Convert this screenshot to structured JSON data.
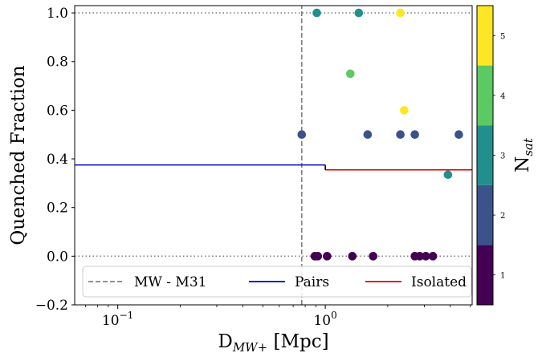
{
  "chart_data": {
    "type": "scatter",
    "xlabel": "D",
    "xlabel_sub": "MW+",
    "xlabel_unit": "[Mpc]",
    "ylabel": "Quenched Fraction",
    "xscale": "log",
    "xlim": [
      0.062,
      5.1
    ],
    "ylim": [
      -0.2,
      1.03
    ],
    "x_ticks": [
      {
        "value": 0.1,
        "base": "10",
        "exp": "−1"
      },
      {
        "value": 1.0,
        "base": "10",
        "exp": "0"
      }
    ],
    "y_ticks": [
      {
        "value": -0.2,
        "label": "−0.2"
      },
      {
        "value": 0.0,
        "label": "0.0"
      },
      {
        "value": 0.2,
        "label": "0.2"
      },
      {
        "value": 0.4,
        "label": "0.4"
      },
      {
        "value": 0.6,
        "label": "0.6"
      },
      {
        "value": 0.8,
        "label": "0.8"
      },
      {
        "value": 1.0,
        "label": "1.0"
      }
    ],
    "reference_lines": {
      "hlines": [
        0.0,
        1.0
      ],
      "vline_mw_m31": 0.77
    },
    "series": [
      {
        "name": "MW - M31",
        "style": "dashed",
        "color": "#808080",
        "x": [
          0.77,
          0.77
        ],
        "y": [
          -0.2,
          1.03
        ]
      },
      {
        "name": "Pairs",
        "style": "step",
        "color": "#0000cc",
        "x": [
          0.062,
          1.0
        ],
        "y": [
          0.375,
          0.375
        ]
      },
      {
        "name": "Isolated",
        "style": "step",
        "color": "#dd0000",
        "x": [
          1.0,
          5.1
        ],
        "y": [
          0.355,
          0.355
        ]
      }
    ],
    "step_connector": {
      "x": 1.0,
      "y": [
        0.355,
        0.375
      ],
      "color": "#000000"
    },
    "points": [
      {
        "x": 0.77,
        "y": 0.5,
        "nsat": 2
      },
      {
        "x": 1.6,
        "y": 0.5,
        "nsat": 2
      },
      {
        "x": 2.3,
        "y": 0.5,
        "nsat": 2
      },
      {
        "x": 2.7,
        "y": 0.5,
        "nsat": 2
      },
      {
        "x": 4.4,
        "y": 0.5,
        "nsat": 2
      },
      {
        "x": 0.91,
        "y": 1.0,
        "nsat": 3
      },
      {
        "x": 1.45,
        "y": 1.0,
        "nsat": 3
      },
      {
        "x": 3.9,
        "y": 0.335,
        "nsat": 3
      },
      {
        "x": 2.3,
        "y": 1.0,
        "nsat": 5
      },
      {
        "x": 2.4,
        "y": 0.6,
        "nsat": 5
      },
      {
        "x": 1.32,
        "y": 0.75,
        "nsat": 4
      },
      {
        "x": 0.89,
        "y": 0.0,
        "nsat": 1
      },
      {
        "x": 0.92,
        "y": 0.0,
        "nsat": 1
      },
      {
        "x": 1.02,
        "y": 0.0,
        "nsat": 1
      },
      {
        "x": 1.35,
        "y": 0.0,
        "nsat": 1
      },
      {
        "x": 1.7,
        "y": 0.0,
        "nsat": 1
      },
      {
        "x": 2.7,
        "y": 0.0,
        "nsat": 1
      },
      {
        "x": 2.85,
        "y": 0.0,
        "nsat": 1
      },
      {
        "x": 3.05,
        "y": 0.0,
        "nsat": 1
      },
      {
        "x": 3.3,
        "y": 0.0,
        "nsat": 1
      }
    ],
    "legend": {
      "placement": "lower-center",
      "entries": [
        {
          "label": "MW - M31",
          "style": "dashed",
          "color": "#808080"
        },
        {
          "label": "Pairs",
          "style": "solid",
          "color": "#0000cc"
        },
        {
          "label": "Isolated",
          "style": "solid",
          "color": "#dd0000"
        }
      ]
    },
    "colorbar": {
      "label": "N",
      "label_sub": "sat",
      "range": [
        0.5,
        5.5
      ],
      "levels": [
        {
          "value": 1,
          "label": "1",
          "color": "#440154"
        },
        {
          "value": 2,
          "label": "2",
          "color": "#3b528b"
        },
        {
          "value": 3,
          "label": "3",
          "color": "#21908d"
        },
        {
          "value": 4,
          "label": "4",
          "color": "#5dc963"
        },
        {
          "value": 5,
          "label": "5",
          "color": "#fde725"
        }
      ]
    }
  }
}
